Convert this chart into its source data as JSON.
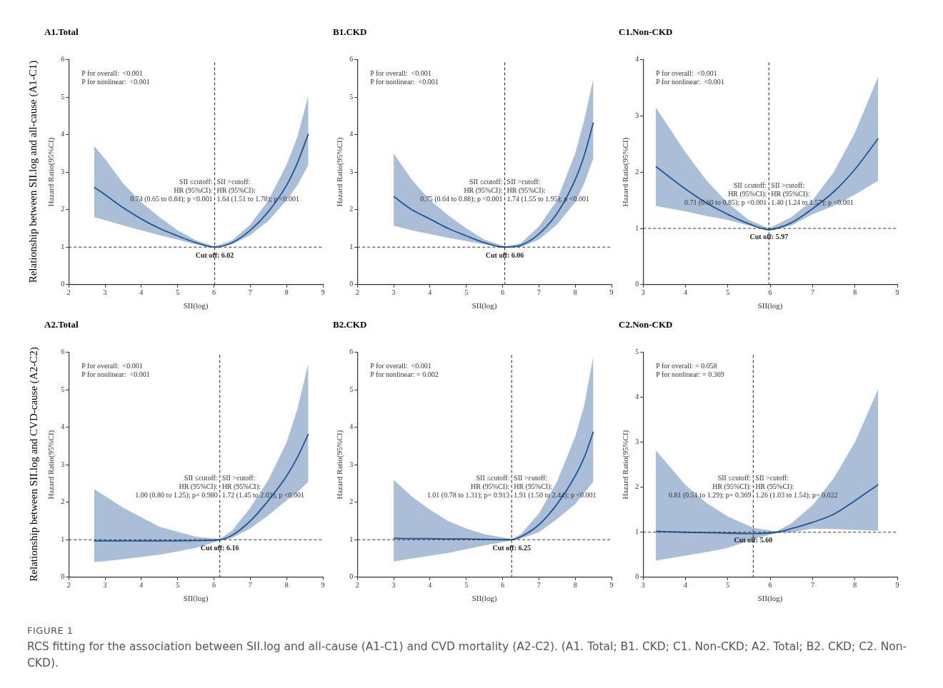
{
  "chart_data": [
    {
      "type": "line",
      "title": "A1.Total",
      "xlabel": "SII(log)",
      "ylabel": "Hazard Ratio(95%CI)",
      "xlim": [
        2,
        9
      ],
      "xticks": [
        2,
        3,
        4,
        5,
        6,
        7,
        8,
        9
      ],
      "ylim": [
        0,
        6
      ],
      "yticks": [
        0,
        1,
        2,
        3,
        4,
        5,
        6
      ],
      "grid": false,
      "legend": false,
      "marker": "none",
      "series": [
        {
          "color": "#1f5597",
          "x": [
            2.7,
            3,
            3.5,
            4,
            4.5,
            5,
            5.5,
            6.02,
            6.5,
            7,
            7.5,
            8,
            8.3,
            8.6
          ],
          "values": [
            2.6,
            2.4,
            2.05,
            1.75,
            1.5,
            1.3,
            1.12,
            1.0,
            1.12,
            1.45,
            1.95,
            2.65,
            3.25,
            4.02
          ],
          "lower": [
            1.8,
            1.72,
            1.58,
            1.45,
            1.32,
            1.2,
            1.07,
            0.98,
            1.07,
            1.32,
            1.7,
            2.25,
            2.65,
            3.2
          ],
          "upper": [
            3.7,
            3.35,
            2.7,
            2.2,
            1.8,
            1.45,
            1.18,
            1.02,
            1.18,
            1.6,
            2.25,
            3.2,
            3.95,
            5.05
          ]
        }
      ],
      "ref_lines": [
        {
          "axis": "y",
          "value": 1,
          "label": null,
          "line_style": "dashed"
        },
        {
          "axis": "x",
          "value": 6.02,
          "label": "Cut off: 6.02",
          "line_style": "dashed"
        }
      ],
      "annotations": [
        "P for overall:  <0.001\nP for nonlinear:  <0.001",
        "Relationship between SII.log and all-cause (A1-C1)",
        {
          "text": "SII ≤cutoff:\nHR (95%CI):\n0.74 (0.65 to 0.84); p <0.001",
          "x": 6.02,
          "y": 2.5
        },
        {
          "text": "SII >cutoff:\nHR (95%CI):\n1.64 (1.51 to 1.78); p <0.001",
          "x": 6.02,
          "y": 2.5
        }
      ]
    },
    {
      "type": "line",
      "title": "B1.CKD",
      "xlabel": "SII(log)",
      "ylabel": "Hazard Ratio(95%CI)",
      "xlim": [
        2,
        9
      ],
      "xticks": [
        2,
        3,
        4,
        5,
        6,
        7,
        8,
        9
      ],
      "ylim": [
        0,
        6
      ],
      "yticks": [
        0,
        1,
        2,
        3,
        4,
        5,
        6
      ],
      "grid": false,
      "legend": false,
      "marker": "none",
      "series": [
        {
          "color": "#1f5597",
          "x": [
            3,
            3.5,
            4,
            4.5,
            5,
            5.5,
            6.06,
            6.5,
            7,
            7.5,
            8,
            8.25,
            8.5
          ],
          "values": [
            2.35,
            2.0,
            1.75,
            1.5,
            1.3,
            1.12,
            1.0,
            1.05,
            1.35,
            1.9,
            2.8,
            3.45,
            4.32
          ],
          "lower": [
            1.57,
            1.45,
            1.35,
            1.25,
            1.16,
            1.07,
            0.98,
            1.0,
            1.2,
            1.6,
            2.2,
            2.7,
            3.37
          ],
          "upper": [
            3.5,
            2.8,
            2.25,
            1.85,
            1.5,
            1.2,
            1.02,
            1.1,
            1.55,
            2.25,
            3.5,
            4.4,
            5.5
          ]
        }
      ],
      "ref_lines": [
        {
          "axis": "y",
          "value": 1,
          "label": null,
          "line_style": "dashed"
        },
        {
          "axis": "x",
          "value": 6.06,
          "label": "Cut off: 6.06",
          "line_style": "dashed"
        }
      ],
      "annotations": [
        "P for overall:  <0.001\nP for nonlinear:  <0.001",
        {
          "text": "SII ≤cutoff:\nHR (95%CI):\n0.75 (0.64 to 0.88); p <0.001",
          "x": 6.06,
          "y": 2.5
        },
        {
          "text": "SII >cutoff:\nHR (95%CI):\n1.74 (1.55 to 1.95); p <0.001",
          "x": 6.06,
          "y": 2.5
        }
      ]
    },
    {
      "type": "line",
      "title": "C1.Non-CKD",
      "xlabel": "SII(log)",
      "ylabel": "Hazard Ratio(95%CI)",
      "xlim": [
        3,
        9
      ],
      "xticks": [
        3,
        4,
        5,
        6,
        7,
        8,
        9
      ],
      "ylim": [
        0,
        4
      ],
      "yticks": [
        0,
        1,
        2,
        3,
        4
      ],
      "grid": false,
      "legend": false,
      "marker": "none",
      "series": [
        {
          "color": "#1f5597",
          "x": [
            3.3,
            4,
            4.5,
            5,
            5.5,
            5.97,
            6.5,
            7,
            7.5,
            8,
            8.55
          ],
          "values": [
            2.1,
            1.7,
            1.45,
            1.25,
            1.08,
            0.98,
            1.1,
            1.35,
            1.65,
            2.05,
            2.6
          ],
          "lower": [
            1.4,
            1.3,
            1.22,
            1.15,
            1.05,
            0.95,
            1.05,
            1.25,
            1.4,
            1.6,
            1.85
          ],
          "upper": [
            3.15,
            2.35,
            1.85,
            1.45,
            1.15,
            1.0,
            1.2,
            1.5,
            2.0,
            2.7,
            3.7
          ]
        }
      ],
      "ref_lines": [
        {
          "axis": "y",
          "value": 1,
          "label": null,
          "line_style": "dashed"
        },
        {
          "axis": "x",
          "value": 5.97,
          "label": "Cut off: 5.97",
          "line_style": "dashed"
        }
      ],
      "annotations": [
        "P for overall:  <0.001\nP for nonlinear:  <0.001",
        {
          "text": "SII ≤cutoff:\nHR (95%CI):\n0.71 (0.60 to 0.85); p <0.001",
          "x": 5.97,
          "y": 1.6
        },
        {
          "text": "SII >cutoff:\nHR (95%CI):\n1.40 (1.24 to 1.57); p <0.001",
          "x": 5.97,
          "y": 1.6
        }
      ]
    },
    {
      "type": "line",
      "title": "A2.Total",
      "xlabel": "SII(log)",
      "ylabel": "Hazard Ratio(95%CI)",
      "xlim": [
        2,
        9
      ],
      "xticks": [
        2,
        3,
        4,
        5,
        6,
        7,
        8,
        9
      ],
      "ylim": [
        0,
        6
      ],
      "yticks": [
        0,
        1,
        2,
        3,
        4,
        5,
        6
      ],
      "grid": false,
      "legend": false,
      "marker": "none",
      "series": [
        {
          "color": "#1f5597",
          "x": [
            2.7,
            3.5,
            4.5,
            5.5,
            6.16,
            6.5,
            7,
            7.5,
            8,
            8.3,
            8.6
          ],
          "values": [
            0.97,
            0.97,
            0.97,
            0.98,
            1.0,
            1.12,
            1.5,
            2.05,
            2.7,
            3.2,
            3.82
          ],
          "lower": [
            0.4,
            0.48,
            0.6,
            0.78,
            0.98,
            1.05,
            1.3,
            1.65,
            2.05,
            2.27,
            2.55
          ],
          "upper": [
            2.35,
            1.85,
            1.35,
            1.08,
            1.02,
            1.25,
            1.85,
            2.6,
            3.6,
            4.5,
            5.7
          ]
        }
      ],
      "ref_lines": [
        {
          "axis": "y",
          "value": 1,
          "label": null,
          "line_style": "dashed"
        },
        {
          "axis": "x",
          "value": 6.16,
          "label": "Cut off: 6.16",
          "line_style": "dashed"
        }
      ],
      "annotations": [
        "P for overall:  <0.001\nP for nonlinear:  <0.001",
        "Relationship between SII.log and CVD-cause (A2-C2)",
        {
          "text": "SII ≤cutoff:\nHR (95%CI):\n1.00 (0.80 to 1.25); p= 0.980",
          "x": 6.16,
          "y": 2.4
        },
        {
          "text": "SII >cutoff:\nHR (95%CI):\n1.72 (1.45 to 2.03); p <0.001",
          "x": 6.16,
          "y": 2.4
        }
      ]
    },
    {
      "type": "line",
      "title": "B2.CKD",
      "xlabel": "SII(log)",
      "ylabel": "Hazard Ratio(95%CI)",
      "xlim": [
        2,
        9
      ],
      "xticks": [
        2,
        3,
        4,
        5,
        6,
        7,
        8,
        9
      ],
      "ylim": [
        0,
        6
      ],
      "yticks": [
        0,
        1,
        2,
        3,
        4,
        5,
        6
      ],
      "grid": false,
      "legend": false,
      "marker": "none",
      "series": [
        {
          "color": "#1f5597",
          "x": [
            3,
            3.5,
            4,
            4.5,
            5,
            5.5,
            6.25,
            6.5,
            7,
            7.5,
            8,
            8.25,
            8.5
          ],
          "values": [
            1.04,
            1.03,
            1.03,
            1.02,
            1.02,
            1.01,
            1.0,
            1.08,
            1.4,
            1.95,
            2.7,
            3.2,
            3.88
          ],
          "lower": [
            0.42,
            0.5,
            0.57,
            0.65,
            0.75,
            0.85,
            0.98,
            1.03,
            1.2,
            1.55,
            1.95,
            2.25,
            2.55
          ],
          "upper": [
            2.6,
            2.15,
            1.8,
            1.5,
            1.3,
            1.15,
            1.02,
            1.15,
            1.7,
            2.55,
            3.75,
            4.6,
            5.9
          ]
        }
      ],
      "ref_lines": [
        {
          "axis": "y",
          "value": 1,
          "label": null,
          "line_style": "dashed"
        },
        {
          "axis": "x",
          "value": 6.25,
          "label": "Cut off: 6.25",
          "line_style": "dashed"
        }
      ],
      "annotations": [
        "P for overall:  <0.001\nP for nonlinear: = 0.002",
        {
          "text": "SII ≤cutoff:\nHR (95%CI):\n1.01 (0.78 to 1.31); p= 0.913",
          "x": 6.25,
          "y": 2.4
        },
        {
          "text": "SII >cutoff:\nHR (95%CI):\n1.91 (1.50 to 2.44); p <0.001",
          "x": 6.25,
          "y": 2.4
        }
      ]
    },
    {
      "type": "line",
      "title": "C2.Non-CKD",
      "xlabel": "SII(log)",
      "ylabel": "Hazard Ratio(95%CI)",
      "xlim": [
        3,
        9
      ],
      "xticks": [
        3,
        4,
        5,
        6,
        7,
        8,
        9
      ],
      "ylim": [
        0,
        5
      ],
      "yticks": [
        0,
        1,
        2,
        3,
        4,
        5
      ],
      "grid": false,
      "legend": false,
      "marker": "none",
      "series": [
        {
          "color": "#1f5597",
          "x": [
            3.3,
            4,
            4.5,
            5,
            5.6,
            6.15,
            6.5,
            7,
            7.5,
            8,
            8.55
          ],
          "values": [
            1.02,
            1.0,
            0.99,
            0.98,
            0.97,
            1.0,
            1.08,
            1.22,
            1.4,
            1.7,
            2.06
          ],
          "lower": [
            0.37,
            0.48,
            0.56,
            0.65,
            0.85,
            0.98,
            1.0,
            1.08,
            1.07,
            1.05,
            1.03
          ],
          "upper": [
            2.82,
            2.05,
            1.65,
            1.35,
            1.1,
            1.02,
            1.2,
            1.6,
            2.2,
            3.0,
            4.18
          ]
        }
      ],
      "ref_lines": [
        {
          "axis": "y",
          "value": 1,
          "label": null,
          "line_style": "dashed"
        },
        {
          "axis": "x",
          "value": 5.6,
          "label": "Cut off: 5.60",
          "line_style": "dashed"
        }
      ],
      "annotations": [
        "P for overall: = 0.058\nP for nonlinear: = 0.369",
        "FIGURE 1",
        "RCS fitting for the association between SII.log and all-cause (A1-C1) and CVD mortality (A2-C2). (A1. Total; B1. CKD; C1. Non-CKD; A2. Total; B2. CKD; C2. Non-CKD).",
        {
          "text": "SII ≤cutoff:\nHR (95%CI):\n0.81 (0.51 to 1.29); p= 0.369",
          "x": 5.6,
          "y": 2.0
        },
        {
          "text": "SII >cutoff:\nHR (95%CI):\n1.26 (1.03 to 1.54); p= 0.022",
          "x": 5.6,
          "y": 2.0
        }
      ]
    }
  ]
}
